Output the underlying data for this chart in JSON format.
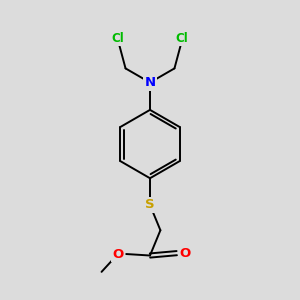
{
  "background_color": "#dcdcdc",
  "bond_color": "#000000",
  "N_color": "#0000ff",
  "S_color": "#c8a000",
  "O_color": "#ff0000",
  "Cl_color": "#00bb00",
  "figsize": [
    3.0,
    3.0
  ],
  "dpi": 100,
  "xlim": [
    0,
    10
  ],
  "ylim": [
    0,
    10
  ]
}
